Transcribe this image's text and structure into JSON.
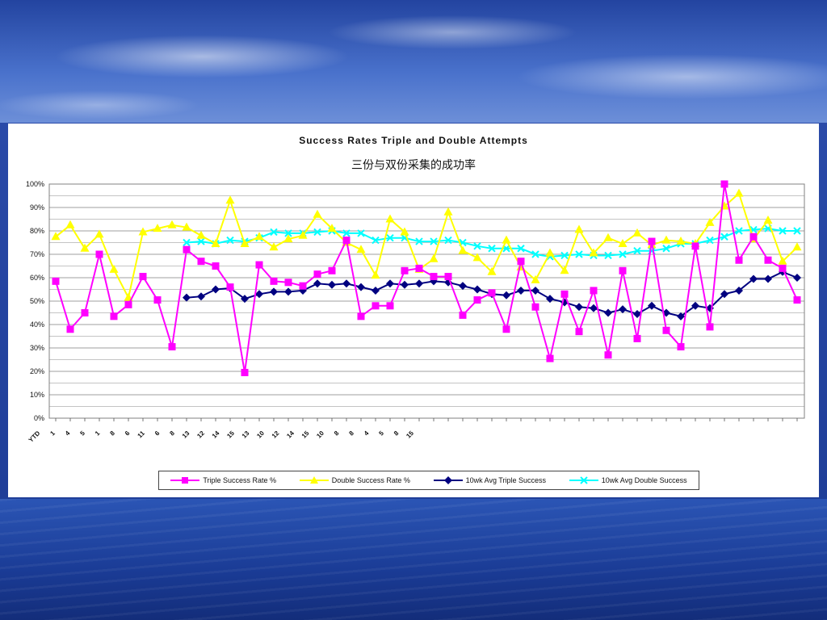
{
  "chart_data": {
    "type": "line",
    "title": "Success Rates Triple and Double Attempts",
    "subtitle": "三份与双份采集的成功率",
    "xlabel": "",
    "ylabel": "",
    "ylim": [
      0,
      100
    ],
    "yticks": [
      "0%",
      "10%",
      "20%",
      "30%",
      "40%",
      "50%",
      "60%",
      "70%",
      "80%",
      "90%",
      "100%"
    ],
    "xtick_labels": [
      "YTD",
      "1",
      "4",
      "5",
      "1",
      "8",
      "6",
      "11",
      "6",
      "8",
      "13",
      "12",
      "14",
      "15",
      "13",
      "10",
      "12",
      "14",
      "15",
      "10",
      "8",
      "8",
      "4",
      "5",
      "8",
      "15"
    ],
    "grid": true,
    "legend_position": "bottom",
    "colors": {
      "triple": "#ff00ff",
      "double": "#ffff00",
      "triple_avg": "#000080",
      "double_avg": "#00ffff"
    },
    "series": [
      {
        "name": "Triple Success Rate %",
        "marker": "square",
        "values": [
          58.5,
          38,
          45,
          70,
          43.5,
          48.5,
          60.5,
          50.5,
          30.5,
          72,
          67,
          65,
          56,
          19.5,
          65.5,
          58.5,
          58,
          56.5,
          61.5,
          63,
          76,
          43.5,
          48,
          48,
          63,
          64,
          60.5,
          60.5,
          44,
          50.5,
          53.5,
          38,
          67,
          47.5,
          25.5,
          53,
          37,
          54.5,
          27,
          63,
          34,
          75.5,
          37.5,
          30.5,
          73.5,
          39,
          100,
          67.5,
          77.5,
          67.5,
          64,
          50.5
        ]
      },
      {
        "name": "Double Success Rate %",
        "marker": "triangle",
        "values": [
          77.5,
          82.5,
          72.5,
          78.5,
          63.5,
          51.5,
          79.5,
          81,
          82.5,
          81.5,
          78,
          74.5,
          93,
          74.5,
          77.5,
          73,
          76.5,
          78,
          87,
          81,
          75,
          72,
          61,
          85,
          79.5,
          63.5,
          68,
          88,
          71.5,
          68.5,
          62.5,
          76,
          64.5,
          59,
          70.5,
          63,
          80.5,
          70.5,
          77,
          74.5,
          79,
          74,
          76,
          75.5,
          74.5,
          83.5,
          90.5,
          96,
          76.5,
          84.5,
          67,
          73
        ]
      },
      {
        "name": "10wk Avg Triple Success",
        "marker": "diamond",
        "values": [
          null,
          null,
          null,
          null,
          null,
          null,
          null,
          null,
          null,
          51.5,
          52,
          55,
          55.5,
          51,
          53,
          54,
          54,
          54.5,
          57.5,
          57,
          57.5,
          56,
          54.5,
          57.5,
          57,
          57.5,
          58.5,
          58,
          56.5,
          55,
          53,
          52.5,
          54.5,
          54.5,
          51,
          49.5,
          47.5,
          47,
          45,
          46.5,
          44.5,
          48,
          45,
          43.5,
          48,
          47,
          53,
          54.5,
          59.5,
          59.5,
          62.5,
          60
        ]
      },
      {
        "name": "10wk Avg Double Success",
        "marker": "x",
        "values": [
          null,
          null,
          null,
          null,
          null,
          null,
          null,
          null,
          null,
          75,
          75.5,
          74.5,
          76,
          75.5,
          77,
          79.5,
          79,
          79,
          79.5,
          80,
          79,
          79,
          76,
          77,
          77,
          75.5,
          75.5,
          76,
          75,
          73.5,
          72.5,
          72.5,
          72.5,
          70,
          69,
          69.5,
          70,
          69.5,
          69.5,
          70,
          71.5,
          71.5,
          72.5,
          74.5,
          74.5,
          76,
          77.5,
          80,
          80.5,
          81,
          80,
          80
        ]
      }
    ]
  }
}
